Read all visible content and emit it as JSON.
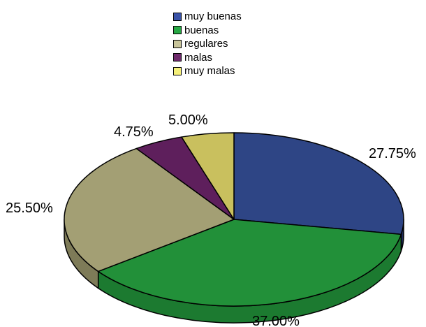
{
  "chart_data": {
    "type": "pie",
    "categories": [
      "muy buenas",
      "buenas",
      "regulares",
      "malas",
      "muy malas"
    ],
    "values": [
      27.75,
      37.0,
      25.5,
      4.75,
      5.0
    ],
    "labels": [
      "27.75%",
      "37.00%",
      "25.50%",
      "4.75%",
      "5.00%"
    ],
    "colors": [
      "#2E4585",
      "#229039",
      "#A39F74",
      "#5E1F5C",
      "#C9C05E"
    ],
    "side_colors": [
      "#1F2F5E",
      "#1C7A30",
      "#7E7B58",
      "#3F1440",
      "#9C9446"
    ],
    "legend": {
      "placement": "top-center",
      "items": [
        {
          "label": "muy buenas",
          "color": "#3A53A8"
        },
        {
          "label": "buenas",
          "color": "#27A844"
        },
        {
          "label": "regulares",
          "color": "#C8C49A"
        },
        {
          "label": "malas",
          "color": "#6E2A6C"
        },
        {
          "label": "muy malas",
          "color": "#F5F07A"
        }
      ]
    },
    "title": ""
  }
}
